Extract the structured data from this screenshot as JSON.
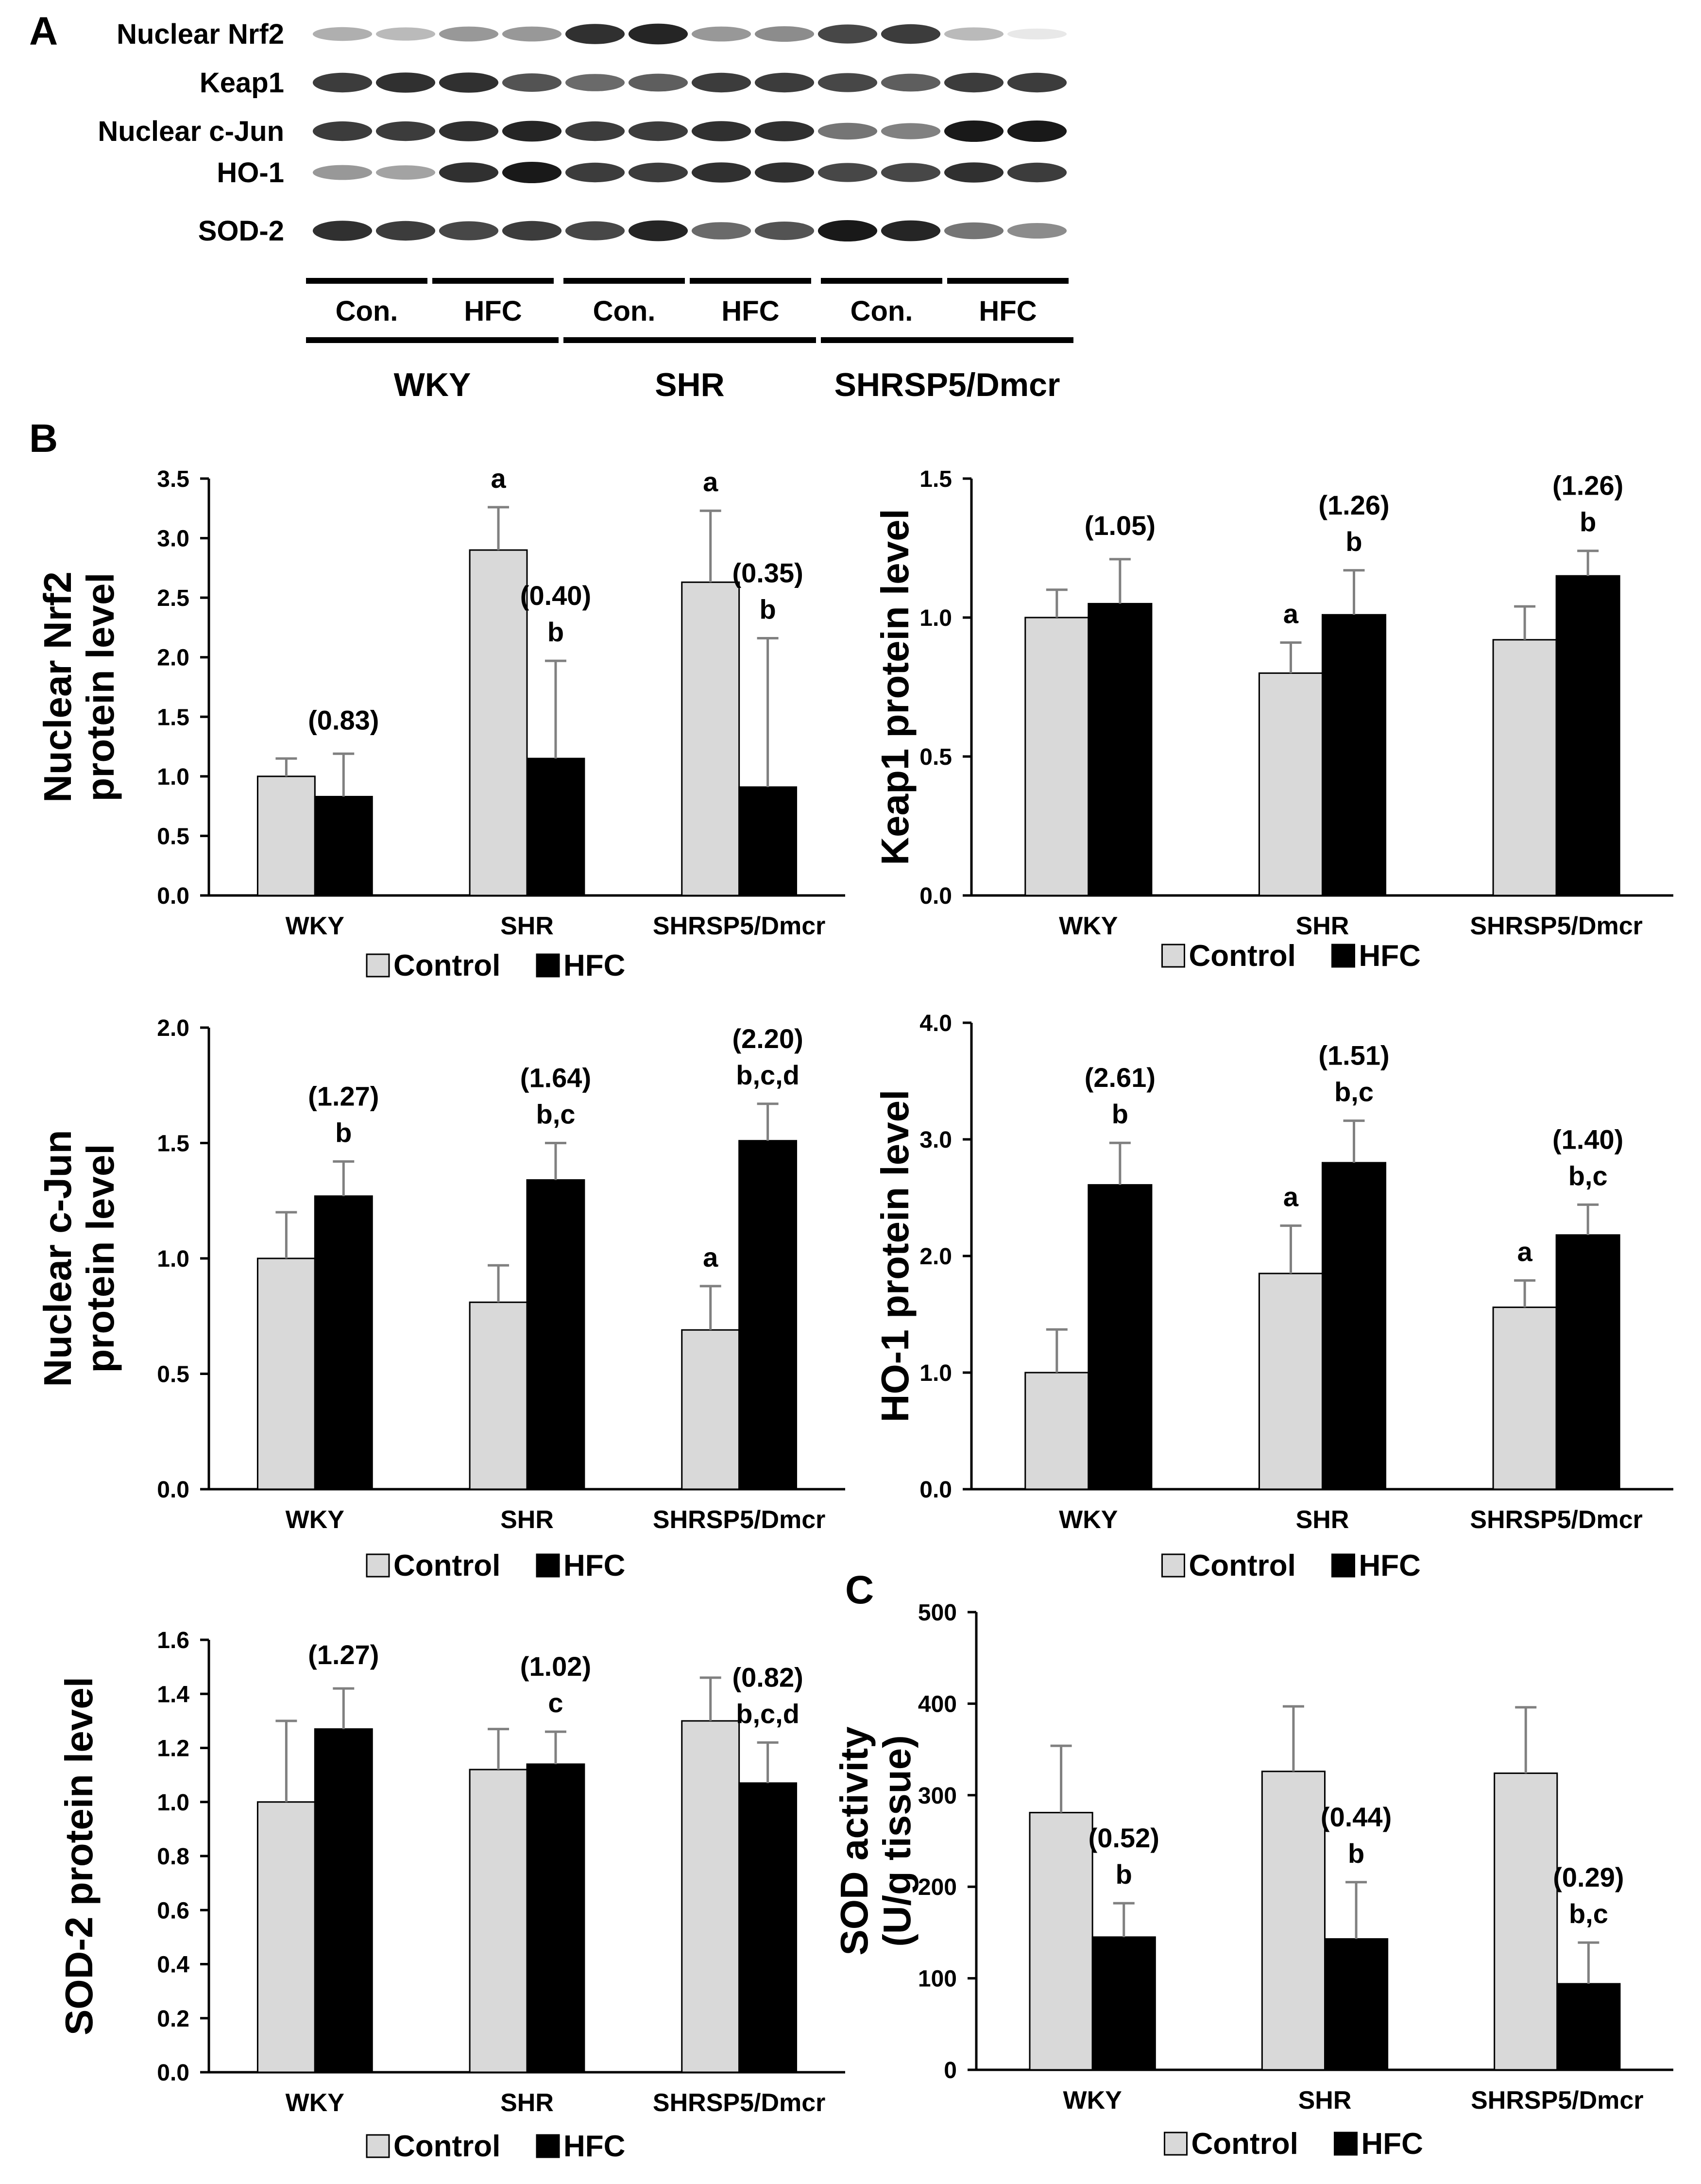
{
  "panel_labels": {
    "a": "A",
    "b": "B",
    "c": "C"
  },
  "blot": {
    "proteins": [
      "Nuclear Nrf2",
      "Keap1",
      "Nuclear c-Jun",
      "HO-1",
      "SOD-2"
    ],
    "treatments": [
      "Con.",
      "HFC",
      "Con.",
      "HFC",
      "Con.",
      "HFC"
    ],
    "strains": [
      "WKY",
      "SHR",
      "SHRSP5/Dmcr"
    ],
    "band_intensity": [
      [
        0.35,
        0.3,
        0.45,
        0.45,
        0.9,
        0.95,
        0.45,
        0.5,
        0.8,
        0.85,
        0.3,
        0.1
      ],
      [
        0.85,
        0.9,
        0.9,
        0.75,
        0.65,
        0.7,
        0.85,
        0.85,
        0.8,
        0.7,
        0.85,
        0.85
      ],
      [
        0.85,
        0.85,
        0.9,
        0.95,
        0.85,
        0.85,
        0.9,
        0.9,
        0.6,
        0.55,
        1.0,
        1.0
      ],
      [
        0.45,
        0.4,
        0.9,
        1.0,
        0.85,
        0.85,
        0.9,
        0.9,
        0.8,
        0.8,
        0.9,
        0.85
      ],
      [
        0.9,
        0.85,
        0.8,
        0.85,
        0.8,
        0.95,
        0.65,
        0.75,
        1.0,
        0.95,
        0.6,
        0.5
      ]
    ]
  },
  "legend": {
    "control": "Control",
    "hfc": "HFC"
  },
  "colors": {
    "control": "#d9d9d9",
    "hfc": "#000000",
    "axis": "#000000",
    "error": "#808080"
  },
  "chart_data": [
    {
      "id": "nrf2",
      "type": "bar",
      "panel": "B",
      "ylabel": [
        "Nuclear Nrf2",
        "protein level"
      ],
      "categories": [
        "WKY",
        "SHR",
        "SHRSP5/Dmcr"
      ],
      "ylim": [
        0,
        3.5
      ],
      "yticks": [
        "0.0",
        "0.5",
        "1.0",
        "1.5",
        "2.0",
        "2.5",
        "3.0",
        "3.5"
      ],
      "series": [
        {
          "name": "Control",
          "values": [
            1.0,
            2.9,
            2.63
          ],
          "errors": [
            0.15,
            0.36,
            0.6
          ]
        },
        {
          "name": "HFC",
          "values": [
            0.83,
            1.15,
            0.91
          ],
          "errors": [
            0.36,
            0.82,
            1.25
          ]
        }
      ],
      "control_labels": [
        "",
        "a",
        "a"
      ],
      "ratio_labels": [
        "(0.83)",
        "(0.40)",
        "(0.35)"
      ],
      "sig_labels": [
        "",
        "b",
        "b"
      ]
    },
    {
      "id": "keap1",
      "type": "bar",
      "panel": "B",
      "ylabel": [
        "Keap1  protein level"
      ],
      "categories": [
        "WKY",
        "SHR",
        "SHRSP5/Dmcr"
      ],
      "ylim": [
        0,
        1.5
      ],
      "yticks": [
        "0.0",
        "0.5",
        "1.0",
        "1.5"
      ],
      "series": [
        {
          "name": "Control",
          "values": [
            1.0,
            0.8,
            0.92
          ],
          "errors": [
            0.1,
            0.11,
            0.12
          ]
        },
        {
          "name": "HFC",
          "values": [
            1.05,
            1.01,
            1.15
          ],
          "errors": [
            0.16,
            0.16,
            0.09
          ]
        }
      ],
      "control_labels": [
        "",
        "a",
        ""
      ],
      "ratio_labels": [
        "(1.05)",
        "(1.26)",
        "(1.26)"
      ],
      "sig_labels": [
        "",
        "b",
        "b"
      ]
    },
    {
      "id": "cjun",
      "type": "bar",
      "panel": "B",
      "ylabel": [
        "Nuclear c-Jun",
        "protein level"
      ],
      "categories": [
        "WKY",
        "SHR",
        "SHRSP5/Dmcr"
      ],
      "ylim": [
        0,
        2.0
      ],
      "yticks": [
        "0.0",
        "0.5",
        "1.0",
        "1.5",
        "2.0"
      ],
      "series": [
        {
          "name": "Control",
          "values": [
            1.0,
            0.81,
            0.69
          ],
          "errors": [
            0.2,
            0.16,
            0.19
          ]
        },
        {
          "name": "HFC",
          "values": [
            1.27,
            1.34,
            1.51
          ],
          "errors": [
            0.15,
            0.16,
            0.16
          ]
        }
      ],
      "control_labels": [
        "",
        "",
        "a"
      ],
      "ratio_labels": [
        "(1.27)",
        "(1.64)",
        "(2.20)"
      ],
      "sig_labels": [
        "b",
        "b,c",
        "b,c,d"
      ]
    },
    {
      "id": "ho1",
      "type": "bar",
      "panel": "B",
      "ylabel": [
        "HO-1  protein  level"
      ],
      "categories": [
        "WKY",
        "SHR",
        "SHRSP5/Dmcr"
      ],
      "ylim": [
        0,
        4.0
      ],
      "yticks": [
        "0.0",
        "1.0",
        "2.0",
        "3.0",
        "4.0"
      ],
      "series": [
        {
          "name": "Control",
          "values": [
            1.0,
            1.85,
            1.56
          ],
          "errors": [
            0.37,
            0.41,
            0.23
          ]
        },
        {
          "name": "HFC",
          "values": [
            2.61,
            2.8,
            2.18
          ],
          "errors": [
            0.36,
            0.36,
            0.26
          ]
        }
      ],
      "control_labels": [
        "",
        "a",
        "a"
      ],
      "ratio_labels": [
        "(2.61)",
        "(1.51)",
        "(1.40)"
      ],
      "sig_labels": [
        "b",
        "b,c",
        "b,c"
      ]
    },
    {
      "id": "sod2",
      "type": "bar",
      "panel": "B",
      "ylabel": [
        "SOD-2 protein level"
      ],
      "categories": [
        "WKY",
        "SHR",
        "SHRSP5/Dmcr"
      ],
      "ylim": [
        0,
        1.6
      ],
      "yticks": [
        "0.0",
        "0.2",
        "0.4",
        "0.6",
        "0.8",
        "1.0",
        "1.2",
        "1.4",
        "1.6"
      ],
      "series": [
        {
          "name": "Control",
          "values": [
            1.0,
            1.12,
            1.3
          ],
          "errors": [
            0.3,
            0.15,
            0.16
          ]
        },
        {
          "name": "HFC",
          "values": [
            1.27,
            1.14,
            1.07
          ],
          "errors": [
            0.15,
            0.12,
            0.15
          ]
        }
      ],
      "control_labels": [
        "",
        "",
        ""
      ],
      "ratio_labels": [
        "(1.27)",
        "(1.02)",
        "(0.82)"
      ],
      "sig_labels": [
        "",
        "c",
        "b,c,d"
      ]
    },
    {
      "id": "sod",
      "type": "bar",
      "panel": "C",
      "ylabel": [
        "SOD activity",
        "(U/g tissue)"
      ],
      "categories": [
        "WKY",
        "SHR",
        "SHRSP5/Dmcr"
      ],
      "ylim": [
        0,
        500
      ],
      "yticks": [
        "0",
        "100",
        "200",
        "300",
        "400",
        "500"
      ],
      "series": [
        {
          "name": "Control",
          "values": [
            281,
            326,
            324
          ],
          "errors": [
            73,
            71,
            72
          ]
        },
        {
          "name": "HFC",
          "values": [
            145,
            143,
            94
          ],
          "errors": [
            37,
            62,
            45
          ]
        }
      ],
      "control_labels": [
        "",
        "",
        ""
      ],
      "ratio_labels": [
        "(0.52)",
        "(0.44)",
        "(0.29)"
      ],
      "sig_labels": [
        "b",
        "b",
        "b,c"
      ]
    }
  ]
}
